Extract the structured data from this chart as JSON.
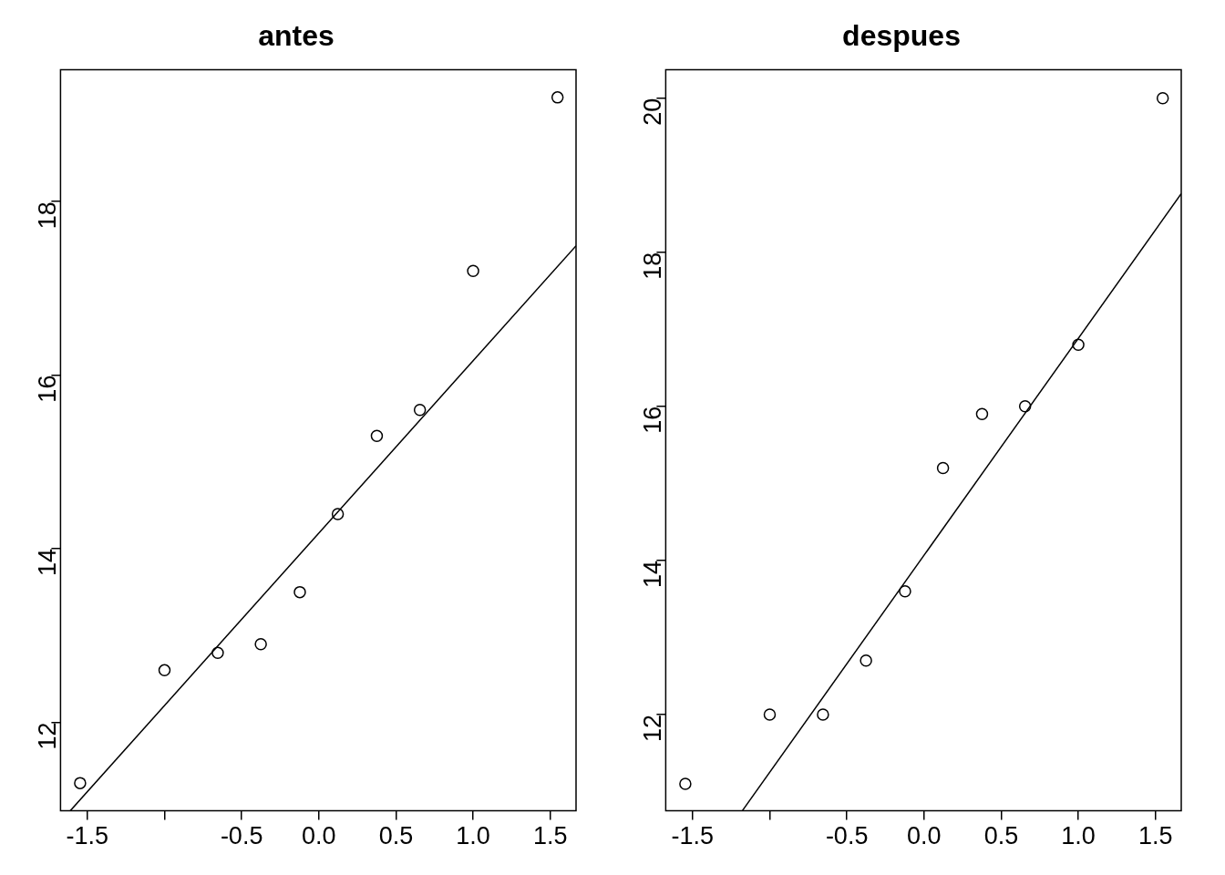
{
  "chart_data": [
    {
      "type": "scatter",
      "title": "antes",
      "xlim": [
        -1.674,
        1.667
      ],
      "ylim": [
        10.98,
        19.52
      ],
      "xticks": [
        -1.5,
        {
          "value": -1,
          "label": null
        },
        -0.5,
        {
          "value": 0,
          "label": "0.0"
        },
        0.5,
        {
          "value": 1,
          "label": "1.0"
        },
        1.5
      ],
      "yticks": [
        12,
        14,
        16,
        18
      ],
      "series": [
        {
          "type": "scatter",
          "color": "#000000",
          "marker": "circle",
          "x": [
            -1.547,
            -1.0,
            -0.655,
            -0.376,
            -0.123,
            0.123,
            0.376,
            0.655,
            1.0,
            1.547
          ],
          "values": [
            11.3,
            12.6,
            12.8,
            12.9,
            13.5,
            14.4,
            15.3,
            15.6,
            17.2,
            19.2
          ]
        },
        {
          "type": "line",
          "color": "#000000",
          "marker": "none",
          "line_style": "solid",
          "x": [
            -1.611,
            1.667
          ],
          "values": [
            10.98,
            17.49
          ]
        }
      ]
    },
    {
      "type": "scatter",
      "title": "despues",
      "xlim": [
        -1.674,
        1.667
      ],
      "ylim": [
        10.75,
        20.37
      ],
      "xticks": [
        -1.5,
        {
          "value": -1,
          "label": null
        },
        -0.5,
        {
          "value": 0,
          "label": "0.0"
        },
        0.5,
        {
          "value": 1,
          "label": "1.0"
        },
        1.5
      ],
      "yticks": [
        12,
        14,
        16,
        18,
        20
      ],
      "series": [
        {
          "type": "scatter",
          "color": "#000000",
          "marker": "circle",
          "x": [
            -1.547,
            -1.0,
            -0.655,
            -0.376,
            -0.123,
            0.123,
            0.376,
            0.655,
            1.0,
            1.547
          ],
          "values": [
            11.1,
            12.0,
            12.0,
            12.7,
            13.6,
            15.2,
            15.9,
            16.0,
            16.8,
            20.0
          ]
        },
        {
          "type": "line",
          "color": "#000000",
          "marker": "none",
          "line_style": "solid",
          "x": [
            -1.178,
            1.667
          ],
          "values": [
            10.75,
            18.76
          ]
        }
      ]
    }
  ]
}
